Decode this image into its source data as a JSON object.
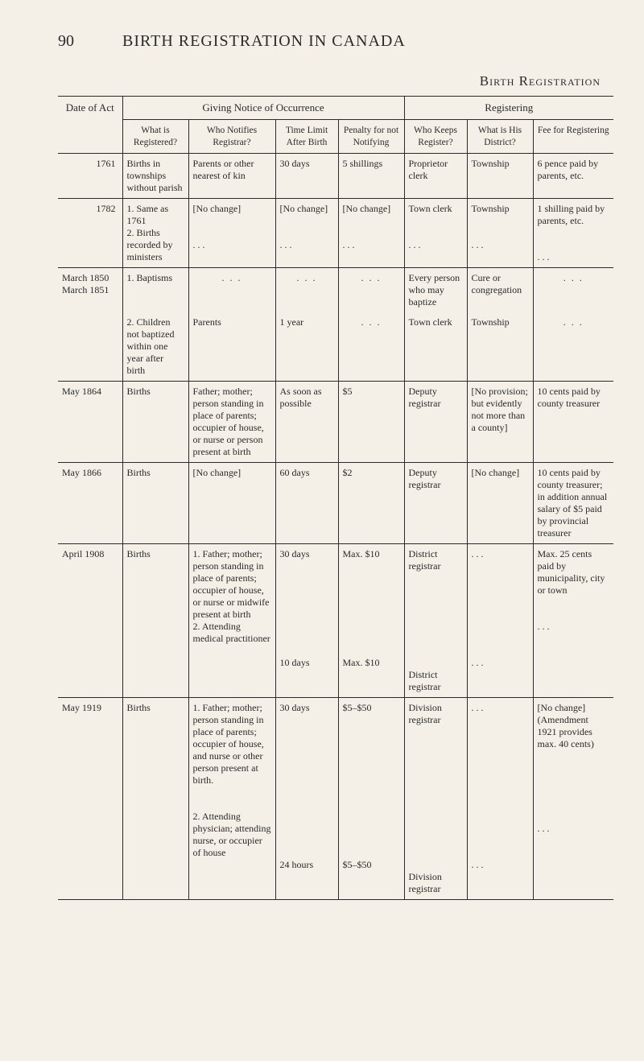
{
  "page_number": "90",
  "page_title": "BIRTH REGISTRATION IN CANADA",
  "section_heading": "Birth Registration",
  "table": {
    "group_headers": {
      "date": "Date of Act",
      "giving": "Giving Notice of Occurrence",
      "registering": "Registering"
    },
    "sub_headers": {
      "what_is_registered": "What is Registered?",
      "who_notifies": "Who Notifies Registrar?",
      "time_limit": "Time Limit After Birth",
      "penalty": "Penalty for not Notifying",
      "who_keeps": "Who Keeps Register?",
      "district": "What is His District?",
      "fee": "Fee for Registering"
    },
    "rows": [
      {
        "date": "1761",
        "cells": [
          "Births in townships without parish",
          "Parents or other nearest of kin",
          "30 days",
          "5 shillings",
          "Proprietor clerk",
          "Township",
          "6 pence paid by parents, etc."
        ]
      },
      {
        "date": "1782",
        "cells": [
          "1. Same as 1761\n2. Births recorded by ministers",
          "[No change]\n\n. . .",
          "[No change]\n\n. . .",
          "[No change]\n\n. . .",
          "Town clerk\n\n. . .",
          "Township\n\n. . .",
          "1 shilling paid by parents, etc.\n\n. . ."
        ]
      },
      {
        "date": "March 1850\nMarch 1851",
        "cells": [
          "1. Baptisms",
          ". . .",
          ". . .",
          ". . .",
          "Every person who may baptize",
          "Cure or congregation",
          ". . ."
        ]
      },
      {
        "date": "",
        "cells": [
          "2. Children not baptized within one year after birth",
          "Parents",
          "1 year",
          ". . .",
          "Town clerk",
          "Township",
          ". . ."
        ]
      },
      {
        "date": "May 1864",
        "cells": [
          "Births",
          "Father; mother; person standing in place of parents; occupier of house, or nurse or person present at birth",
          "As soon as possible",
          "$5",
          "Deputy registrar",
          "[No provision; but evidently not more than a county]",
          "10 cents paid by county treasurer"
        ]
      },
      {
        "date": "May 1866",
        "cells": [
          "Births",
          "[No change]",
          "60 days",
          "$2",
          "Deputy registrar",
          "[No change]",
          "10 cents paid by county treasurer; in addition annual salary of $5 paid by provincial treasurer"
        ]
      },
      {
        "date": "April 1908",
        "cells": [
          "Births",
          "1. Father; mother; person standing in place of parents; occupier of house, or nurse or midwife present at birth\n2. Attending medical practitioner",
          "30 days\n\n\n\n\n10 days",
          "Max. $10\n\n\n\n\nMax. $10",
          "District registrar\n\n\n\n\nDistrict registrar",
          ". . .\n\n\n\n\n. . .",
          "Max. 25 cents paid by municipality, city or town\n\n. . ."
        ]
      },
      {
        "date": "May 1919",
        "cells": [
          "Births",
          "1. Father; mother; person standing in place of parents; occupier of house, and nurse or other person present at birth.\n\n2. Attending physician; attending nurse, or occupier of house",
          "30 days\n\n\n\n\n\n\n24 hours",
          "$5–$50\n\n\n\n\n\n\n$5–$50",
          "Division registrar\n\n\n\n\n\n\nDivision registrar",
          ". . .\n\n\n\n\n\n\n. . .",
          "[No change] (Amendment 1921 provides max. 40 cents)\n\n\n\n. . ."
        ]
      }
    ]
  }
}
